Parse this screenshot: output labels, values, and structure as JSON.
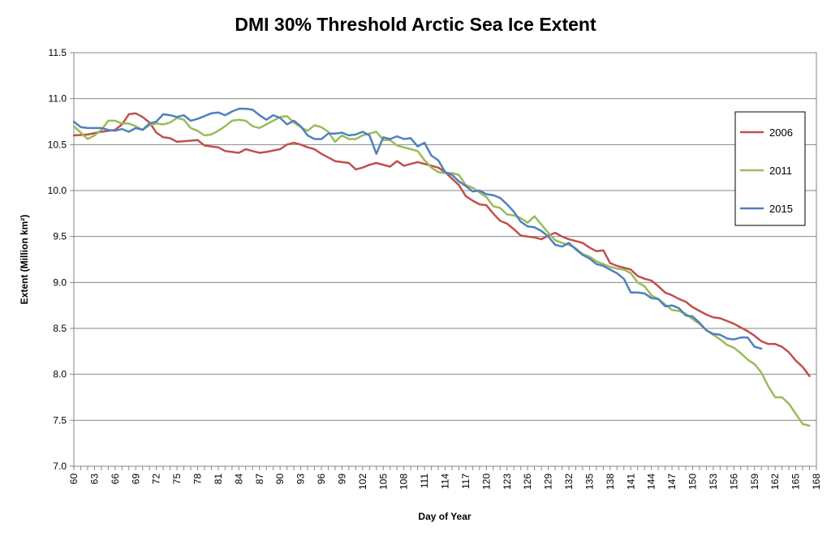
{
  "chart_data": {
    "type": "line",
    "title": "DMI 30% Threshold Arctic Sea Ice Extent",
    "xlabel": "Day of Year",
    "ylabel": "Extent (Million km²)",
    "xlim": [
      60,
      168
    ],
    "ylim": [
      7.0,
      11.5
    ],
    "x_ticks": [
      "60",
      "63",
      "66",
      "69",
      "72",
      "75",
      "78",
      "81",
      "84",
      "87",
      "90",
      "93",
      "96",
      "99",
      "102",
      "105",
      "108",
      "111",
      "114",
      "117",
      "120",
      "123",
      "126",
      "129",
      "132",
      "135",
      "138",
      "141",
      "144",
      "147",
      "150",
      "153",
      "156",
      "159",
      "162",
      "165",
      "168"
    ],
    "y_ticks": [
      "7.0",
      "7.5",
      "8.0",
      "8.5",
      "9.0",
      "9.5",
      "10.0",
      "10.5",
      "11.0",
      "11.5"
    ],
    "grid": "horizontal",
    "legend_position": "right",
    "series": [
      {
        "name": "2006",
        "color": "#C0504D",
        "points": [
          [
            60,
            10.6
          ],
          [
            62,
            10.61
          ],
          [
            64,
            10.64
          ],
          [
            66,
            10.66
          ],
          [
            67,
            10.72
          ],
          [
            68,
            10.83
          ],
          [
            69,
            10.84
          ],
          [
            70,
            10.8
          ],
          [
            71,
            10.74
          ],
          [
            72,
            10.63
          ],
          [
            73,
            10.58
          ],
          [
            74,
            10.57
          ],
          [
            75,
            10.53
          ],
          [
            78,
            10.55
          ],
          [
            79,
            10.49
          ],
          [
            80,
            10.48
          ],
          [
            81,
            10.47
          ],
          [
            82,
            10.43
          ],
          [
            84,
            10.41
          ],
          [
            85,
            10.45
          ],
          [
            86,
            10.43
          ],
          [
            87,
            10.41
          ],
          [
            88,
            10.42
          ],
          [
            90,
            10.45
          ],
          [
            91,
            10.5
          ],
          [
            92,
            10.52
          ],
          [
            93,
            10.5
          ],
          [
            94,
            10.47
          ],
          [
            95,
            10.45
          ],
          [
            96,
            10.4
          ],
          [
            97,
            10.36
          ],
          [
            98,
            10.32
          ],
          [
            100,
            10.3
          ],
          [
            101,
            10.23
          ],
          [
            102,
            10.25
          ],
          [
            103,
            10.28
          ],
          [
            104,
            10.3
          ],
          [
            106,
            10.26
          ],
          [
            107,
            10.32
          ],
          [
            108,
            10.27
          ],
          [
            110,
            10.31
          ],
          [
            112,
            10.27
          ],
          [
            113,
            10.25
          ],
          [
            114,
            10.2
          ],
          [
            115,
            10.13
          ],
          [
            116,
            10.06
          ],
          [
            117,
            9.94
          ],
          [
            118,
            9.89
          ],
          [
            119,
            9.85
          ],
          [
            120,
            9.84
          ],
          [
            121,
            9.75
          ],
          [
            122,
            9.67
          ],
          [
            123,
            9.64
          ],
          [
            124,
            9.58
          ],
          [
            125,
            9.51
          ],
          [
            126,
            9.5
          ],
          [
            127,
            9.49
          ],
          [
            128,
            9.47
          ],
          [
            129,
            9.51
          ],
          [
            130,
            9.54
          ],
          [
            131,
            9.5
          ],
          [
            132,
            9.47
          ],
          [
            133,
            9.45
          ],
          [
            134,
            9.43
          ],
          [
            135,
            9.38
          ],
          [
            136,
            9.34
          ],
          [
            137,
            9.35
          ],
          [
            138,
            9.21
          ],
          [
            139,
            9.18
          ],
          [
            140,
            9.16
          ],
          [
            141,
            9.14
          ],
          [
            142,
            9.07
          ],
          [
            143,
            9.04
          ],
          [
            144,
            9.02
          ],
          [
            145,
            8.96
          ],
          [
            146,
            8.89
          ],
          [
            147,
            8.86
          ],
          [
            148,
            8.82
          ],
          [
            149,
            8.79
          ],
          [
            150,
            8.73
          ],
          [
            151,
            8.69
          ],
          [
            152,
            8.65
          ],
          [
            153,
            8.62
          ],
          [
            154,
            8.61
          ],
          [
            155,
            8.58
          ],
          [
            156,
            8.55
          ],
          [
            157,
            8.51
          ],
          [
            158,
            8.47
          ],
          [
            159,
            8.42
          ],
          [
            160,
            8.36
          ],
          [
            161,
            8.33
          ],
          [
            162,
            8.33
          ],
          [
            163,
            8.3
          ],
          [
            164,
            8.24
          ],
          [
            165,
            8.15
          ],
          [
            166,
            8.08
          ],
          [
            167,
            7.98
          ]
        ]
      },
      {
        "name": "2011",
        "color": "#9BBB59",
        "points": [
          [
            60,
            10.7
          ],
          [
            61,
            10.63
          ],
          [
            62,
            10.56
          ],
          [
            63,
            10.6
          ],
          [
            64,
            10.66
          ],
          [
            65,
            10.76
          ],
          [
            66,
            10.76
          ],
          [
            67,
            10.73
          ],
          [
            68,
            10.73
          ],
          [
            69,
            10.7
          ],
          [
            70,
            10.66
          ],
          [
            71,
            10.71
          ],
          [
            72,
            10.73
          ],
          [
            73,
            10.72
          ],
          [
            74,
            10.74
          ],
          [
            75,
            10.79
          ],
          [
            76,
            10.77
          ],
          [
            77,
            10.68
          ],
          [
            78,
            10.65
          ],
          [
            79,
            10.6
          ],
          [
            80,
            10.61
          ],
          [
            81,
            10.65
          ],
          [
            82,
            10.7
          ],
          [
            83,
            10.76
          ],
          [
            84,
            10.77
          ],
          [
            85,
            10.76
          ],
          [
            86,
            10.7
          ],
          [
            87,
            10.68
          ],
          [
            88,
            10.72
          ],
          [
            89,
            10.76
          ],
          [
            90,
            10.8
          ],
          [
            91,
            10.81
          ],
          [
            92,
            10.74
          ],
          [
            93,
            10.69
          ],
          [
            94,
            10.65
          ],
          [
            95,
            10.71
          ],
          [
            96,
            10.69
          ],
          [
            97,
            10.64
          ],
          [
            98,
            10.53
          ],
          [
            99,
            10.6
          ],
          [
            100,
            10.56
          ],
          [
            101,
            10.56
          ],
          [
            102,
            10.6
          ],
          [
            103,
            10.62
          ],
          [
            104,
            10.64
          ],
          [
            105,
            10.55
          ],
          [
            106,
            10.55
          ],
          [
            107,
            10.49
          ],
          [
            108,
            10.47
          ],
          [
            109,
            10.45
          ],
          [
            110,
            10.43
          ],
          [
            111,
            10.33
          ],
          [
            112,
            10.25
          ],
          [
            113,
            10.2
          ],
          [
            114,
            10.19
          ],
          [
            115,
            10.19
          ],
          [
            116,
            10.17
          ],
          [
            117,
            10.06
          ],
          [
            118,
            10.03
          ],
          [
            119,
            9.98
          ],
          [
            120,
            9.93
          ],
          [
            121,
            9.83
          ],
          [
            122,
            9.81
          ],
          [
            123,
            9.74
          ],
          [
            124,
            9.73
          ],
          [
            125,
            9.7
          ],
          [
            126,
            9.65
          ],
          [
            127,
            9.72
          ],
          [
            128,
            9.63
          ],
          [
            129,
            9.54
          ],
          [
            130,
            9.46
          ],
          [
            131,
            9.43
          ],
          [
            132,
            9.41
          ],
          [
            133,
            9.37
          ],
          [
            134,
            9.31
          ],
          [
            135,
            9.28
          ],
          [
            136,
            9.23
          ],
          [
            137,
            9.2
          ],
          [
            138,
            9.17
          ],
          [
            139,
            9.15
          ],
          [
            140,
            9.14
          ],
          [
            141,
            9.1
          ],
          [
            142,
            9.0
          ],
          [
            143,
            8.96
          ],
          [
            144,
            8.86
          ],
          [
            145,
            8.82
          ],
          [
            146,
            8.76
          ],
          [
            147,
            8.7
          ],
          [
            148,
            8.69
          ],
          [
            149,
            8.66
          ],
          [
            150,
            8.6
          ],
          [
            151,
            8.55
          ],
          [
            152,
            8.48
          ],
          [
            153,
            8.43
          ],
          [
            154,
            8.38
          ],
          [
            155,
            8.32
          ],
          [
            156,
            8.29
          ],
          [
            157,
            8.23
          ],
          [
            158,
            8.16
          ],
          [
            159,
            8.11
          ],
          [
            160,
            8.02
          ],
          [
            161,
            7.87
          ],
          [
            162,
            7.75
          ],
          [
            163,
            7.75
          ],
          [
            164,
            7.68
          ],
          [
            165,
            7.57
          ],
          [
            166,
            7.46
          ],
          [
            167,
            7.44
          ]
        ]
      },
      {
        "name": "2015",
        "color": "#4F81BD",
        "points": [
          [
            60,
            10.75
          ],
          [
            61,
            10.69
          ],
          [
            62,
            10.68
          ],
          [
            63,
            10.68
          ],
          [
            64,
            10.68
          ],
          [
            65,
            10.66
          ],
          [
            66,
            10.65
          ],
          [
            67,
            10.67
          ],
          [
            68,
            10.64
          ],
          [
            69,
            10.68
          ],
          [
            70,
            10.66
          ],
          [
            71,
            10.73
          ],
          [
            72,
            10.75
          ],
          [
            73,
            10.83
          ],
          [
            74,
            10.82
          ],
          [
            75,
            10.8
          ],
          [
            76,
            10.82
          ],
          [
            77,
            10.76
          ],
          [
            78,
            10.78
          ],
          [
            79,
            10.81
          ],
          [
            80,
            10.84
          ],
          [
            81,
            10.85
          ],
          [
            82,
            10.82
          ],
          [
            83,
            10.86
          ],
          [
            84,
            10.89
          ],
          [
            85,
            10.89
          ],
          [
            86,
            10.88
          ],
          [
            87,
            10.82
          ],
          [
            88,
            10.77
          ],
          [
            89,
            10.82
          ],
          [
            90,
            10.79
          ],
          [
            91,
            10.72
          ],
          [
            92,
            10.76
          ],
          [
            93,
            10.7
          ],
          [
            94,
            10.6
          ],
          [
            95,
            10.56
          ],
          [
            96,
            10.56
          ],
          [
            97,
            10.62
          ],
          [
            98,
            10.62
          ],
          [
            99,
            10.63
          ],
          [
            100,
            10.6
          ],
          [
            101,
            10.61
          ],
          [
            102,
            10.64
          ],
          [
            103,
            10.6
          ],
          [
            104,
            10.4
          ],
          [
            105,
            10.58
          ],
          [
            106,
            10.56
          ],
          [
            107,
            10.59
          ],
          [
            108,
            10.56
          ],
          [
            109,
            10.57
          ],
          [
            110,
            10.48
          ],
          [
            111,
            10.52
          ],
          [
            112,
            10.38
          ],
          [
            113,
            10.33
          ],
          [
            114,
            10.2
          ],
          [
            115,
            10.17
          ],
          [
            116,
            10.1
          ],
          [
            117,
            10.05
          ],
          [
            118,
            9.99
          ],
          [
            119,
            10.0
          ],
          [
            120,
            9.96
          ],
          [
            121,
            9.95
          ],
          [
            122,
            9.92
          ],
          [
            123,
            9.85
          ],
          [
            124,
            9.77
          ],
          [
            125,
            9.66
          ],
          [
            126,
            9.61
          ],
          [
            127,
            9.6
          ],
          [
            128,
            9.56
          ],
          [
            129,
            9.5
          ],
          [
            130,
            9.41
          ],
          [
            131,
            9.39
          ],
          [
            132,
            9.43
          ],
          [
            133,
            9.36
          ],
          [
            134,
            9.3
          ],
          [
            135,
            9.26
          ],
          [
            136,
            9.2
          ],
          [
            137,
            9.18
          ],
          [
            138,
            9.14
          ],
          [
            139,
            9.1
          ],
          [
            140,
            9.04
          ],
          [
            141,
            8.89
          ],
          [
            142,
            8.89
          ],
          [
            143,
            8.88
          ],
          [
            144,
            8.83
          ],
          [
            145,
            8.82
          ],
          [
            146,
            8.74
          ],
          [
            147,
            8.75
          ],
          [
            148,
            8.72
          ],
          [
            149,
            8.64
          ],
          [
            150,
            8.63
          ],
          [
            151,
            8.56
          ],
          [
            152,
            8.48
          ],
          [
            153,
            8.44
          ],
          [
            154,
            8.43
          ],
          [
            155,
            8.39
          ],
          [
            156,
            8.38
          ],
          [
            157,
            8.4
          ],
          [
            158,
            8.4
          ],
          [
            159,
            8.3
          ],
          [
            160,
            8.28
          ]
        ]
      }
    ]
  }
}
